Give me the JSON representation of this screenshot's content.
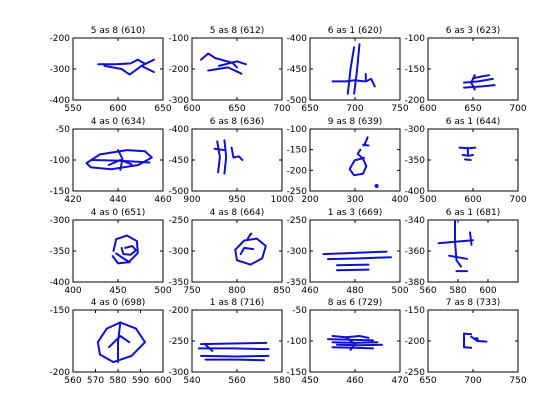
{
  "colors": {
    "stroke": "#1010d0",
    "axes": "#000000",
    "background": "#ffffff"
  },
  "chart_data": [
    {
      "type": "line",
      "title": "5 as 8 (610)",
      "xlim": [
        550,
        650
      ],
      "ylim": [
        -400,
        -200
      ],
      "xticks": [
        550,
        600,
        650
      ],
      "yticks": [
        -400,
        -300,
        -200
      ],
      "strokes": [
        [
          [
            578,
            -285
          ],
          [
            598,
            -285
          ],
          [
            614,
            -282
          ],
          [
            622,
            -270
          ],
          [
            630,
            -283
          ]
        ],
        [
          [
            585,
            -290
          ],
          [
            604,
            -300
          ],
          [
            613,
            -318
          ],
          [
            626,
            -290
          ],
          [
            640,
            -270
          ]
        ],
        [
          [
            626,
            -290
          ],
          [
            640,
            -310
          ]
        ]
      ],
      "dots": []
    },
    {
      "type": "line",
      "title": "5 as 8 (612)",
      "xlim": [
        600,
        700
      ],
      "ylim": [
        -300,
        -100
      ],
      "xticks": [
        600,
        650,
        700
      ],
      "yticks": [
        -300,
        -200,
        -100
      ],
      "strokes": [
        [
          [
            610,
            -170
          ],
          [
            618,
            -150
          ],
          [
            626,
            -165
          ],
          [
            645,
            -180
          ],
          [
            650,
            -195
          ]
        ],
        [
          [
            618,
            -205
          ],
          [
            640,
            -195
          ],
          [
            655,
            -215
          ]
        ],
        [
          [
            630,
            -190
          ],
          [
            650,
            -175
          ],
          [
            660,
            -185
          ]
        ]
      ],
      "dots": []
    },
    {
      "type": "line",
      "title": "6 as 1 (620)",
      "xlim": [
        650,
        750
      ],
      "ylim": [
        -500,
        -400
      ],
      "xticks": [
        650,
        700,
        750
      ],
      "yticks": [
        -500,
        -450,
        -400
      ],
      "strokes": [
        [
          [
            692,
            -490
          ],
          [
            695,
            -450
          ],
          [
            699,
            -415
          ]
        ],
        [
          [
            699,
            -490
          ],
          [
            702,
            -455
          ],
          [
            705,
            -410
          ]
        ],
        [
          [
            675,
            -470
          ],
          [
            690,
            -470
          ],
          [
            700,
            -468
          ],
          [
            710,
            -470
          ]
        ],
        [
          [
            712,
            -458
          ],
          [
            712,
            -470
          ],
          [
            718,
            -466
          ],
          [
            722,
            -478
          ]
        ]
      ],
      "dots": []
    },
    {
      "type": "line",
      "title": "6 as 3 (623)",
      "xlim": [
        600,
        700
      ],
      "ylim": [
        -200,
        -100
      ],
      "xticks": [
        600,
        650,
        700
      ],
      "yticks": [
        -200,
        -150,
        -100
      ],
      "strokes": [
        [
          [
            650,
            -165
          ],
          [
            660,
            -162
          ],
          [
            668,
            -160
          ]
        ],
        [
          [
            640,
            -172
          ],
          [
            656,
            -170
          ],
          [
            672,
            -166
          ]
        ],
        [
          [
            640,
            -180
          ],
          [
            660,
            -178
          ],
          [
            674,
            -176
          ]
        ],
        [
          [
            652,
            -160
          ],
          [
            648,
            -172
          ],
          [
            652,
            -183
          ]
        ]
      ],
      "dots": []
    },
    {
      "type": "line",
      "title": "4 as 0 (634)",
      "xlim": [
        420,
        460
      ],
      "ylim": [
        -150,
        -50
      ],
      "xticks": [
        420,
        440,
        460
      ],
      "yticks": [
        -150,
        -100,
        -50
      ],
      "strokes": [
        [
          [
            426,
            -105
          ],
          [
            432,
            -91
          ],
          [
            444,
            -84
          ],
          [
            452,
            -86
          ],
          [
            455,
            -96
          ],
          [
            449,
            -108
          ],
          [
            437,
            -115
          ],
          [
            428,
            -112
          ],
          [
            426,
            -105
          ]
        ],
        [
          [
            428,
            -100
          ],
          [
            440,
            -101
          ],
          [
            454,
            -104
          ]
        ],
        [
          [
            440,
            -84
          ],
          [
            442,
            -98
          ],
          [
            441,
            -116
          ]
        ],
        [
          [
            436,
            -108
          ],
          [
            441,
            -100
          ],
          [
            446,
            -107
          ]
        ]
      ],
      "dots": []
    },
    {
      "type": "line",
      "title": "6 as 8 (636)",
      "xlim": [
        900,
        1000
      ],
      "ylim": [
        -500,
        -400
      ],
      "xticks": [
        900,
        950,
        1000
      ],
      "yticks": [
        -500,
        -450,
        -400
      ],
      "strokes": [
        [
          [
            928,
            -420
          ],
          [
            931,
            -445
          ],
          [
            929,
            -470
          ]
        ],
        [
          [
            936,
            -418
          ],
          [
            938,
            -445
          ],
          [
            936,
            -472
          ]
        ],
        [
          [
            925,
            -432
          ],
          [
            936,
            -434
          ]
        ],
        [
          [
            944,
            -430
          ],
          [
            946,
            -446
          ],
          [
            952,
            -444
          ],
          [
            956,
            -450
          ]
        ]
      ],
      "dots": []
    },
    {
      "type": "line",
      "title": "9 as 8 (639)",
      "xlim": [
        200,
        400
      ],
      "ylim": [
        -250,
        -100
      ],
      "xticks": [
        200,
        300,
        400
      ],
      "yticks": [
        -250,
        -200,
        -150,
        -100
      ],
      "strokes": [
        [
          [
            320,
            -170
          ],
          [
            299,
            -176
          ],
          [
            288,
            -197
          ],
          [
            298,
            -212
          ],
          [
            318,
            -208
          ],
          [
            325,
            -190
          ],
          [
            318,
            -172
          ],
          [
            306,
            -160
          ],
          [
            312,
            -150
          ]
        ],
        [
          [
            320,
            -140
          ],
          [
            325,
            -128
          ],
          [
            328,
            -120
          ]
        ],
        [
          [
            318,
            -138
          ],
          [
            330,
            -140
          ]
        ]
      ],
      "dots": [
        [
          348,
          -238
        ]
      ]
    },
    {
      "type": "line",
      "title": "6 as 1 (644)",
      "xlim": [
        500,
        700
      ],
      "ylim": [
        -400,
        -300
      ],
      "xticks": [
        500,
        600,
        700
      ],
      "yticks": [
        -400,
        -350,
        -300
      ],
      "strokes": [
        [
          [
            570,
            -330
          ],
          [
            590,
            -331
          ],
          [
            605,
            -330
          ]
        ],
        [
          [
            588,
            -330
          ],
          [
            589,
            -342
          ]
        ],
        [
          [
            577,
            -342
          ],
          [
            590,
            -343
          ],
          [
            600,
            -342
          ]
        ],
        [
          [
            582,
            -349
          ],
          [
            595,
            -350
          ]
        ]
      ],
      "dots": []
    },
    {
      "type": "line",
      "title": "4 as 0 (651)",
      "xlim": [
        400,
        500
      ],
      "ylim": [
        -400,
        -300
      ],
      "xticks": [
        400,
        450,
        500
      ],
      "yticks": [
        -400,
        -350,
        -300
      ],
      "strokes": [
        [
          [
            445,
            -350
          ],
          [
            448,
            -331
          ],
          [
            460,
            -325
          ],
          [
            471,
            -334
          ],
          [
            472,
            -353
          ],
          [
            462,
            -368
          ],
          [
            450,
            -370
          ],
          [
            444,
            -358
          ]
        ],
        [
          [
            454,
            -345
          ],
          [
            456,
            -355
          ],
          [
            464,
            -356
          ],
          [
            470,
            -349
          ],
          [
            466,
            -342
          ],
          [
            458,
            -345
          ]
        ],
        [
          [
            448,
            -354
          ],
          [
            456,
            -362
          ],
          [
            463,
            -368
          ]
        ]
      ],
      "dots": []
    },
    {
      "type": "line",
      "title": "4 as 8 (664)",
      "xlim": [
        750,
        850
      ],
      "ylim": [
        -350,
        -250
      ],
      "xticks": [
        750,
        800,
        850
      ],
      "yticks": [
        -350,
        -300,
        -250
      ],
      "strokes": [
        [
          [
            822,
            -280
          ],
          [
            808,
            -283
          ],
          [
            798,
            -298
          ],
          [
            800,
            -315
          ],
          [
            815,
            -322
          ],
          [
            828,
            -312
          ],
          [
            832,
            -292
          ],
          [
            822,
            -280
          ]
        ],
        [
          [
            804,
            -305
          ],
          [
            808,
            -295
          ],
          [
            818,
            -297
          ]
        ],
        [
          [
            812,
            -280
          ],
          [
            814,
            -275
          ],
          [
            816,
            -272
          ]
        ]
      ],
      "dots": []
    },
    {
      "type": "line",
      "title": "1 as 3 (669)",
      "xlim": [
        460,
        500
      ],
      "ylim": [
        -350,
        -250
      ],
      "xticks": [
        460,
        480,
        500
      ],
      "yticks": [
        -350,
        -300,
        -250
      ],
      "strokes": [
        [
          [
            466,
            -305
          ],
          [
            480,
            -303
          ],
          [
            494,
            -301
          ]
        ],
        [
          [
            468,
            -313
          ],
          [
            482,
            -312
          ],
          [
            496,
            -310
          ]
        ],
        [
          [
            472,
            -323
          ],
          [
            486,
            -322
          ]
        ],
        [
          [
            472,
            -331
          ],
          [
            486,
            -330
          ]
        ]
      ],
      "dots": []
    },
    {
      "type": "line",
      "title": "6 as 1 (681)",
      "xlim": [
        560,
        620
      ],
      "ylim": [
        -380,
        -340
      ],
      "xticks": [
        560,
        580,
        600
      ],
      "yticks": [
        -380,
        -360,
        -340
      ],
      "strokes": [
        [
          [
            567,
            -355
          ],
          [
            578,
            -354
          ],
          [
            590,
            -353
          ]
        ],
        [
          [
            578,
            -340
          ],
          [
            578,
            -354
          ],
          [
            579,
            -366
          ],
          [
            582,
            -370
          ]
        ],
        [
          [
            588,
            -348
          ],
          [
            589,
            -356
          ]
        ],
        [
          [
            574,
            -363
          ],
          [
            586,
            -365
          ]
        ],
        [
          [
            579,
            -373
          ],
          [
            586,
            -373
          ]
        ]
      ],
      "dots": []
    },
    {
      "type": "line",
      "title": "4 as 0 (698)",
      "xlim": [
        560,
        600
      ],
      "ylim": [
        -200,
        -150
      ],
      "xticks": [
        560,
        570,
        580,
        590,
        600
      ],
      "yticks": [
        -200,
        -150
      ],
      "strokes": [
        [
          [
            571,
            -176
          ],
          [
            575,
            -165
          ],
          [
            581,
            -160
          ],
          [
            588,
            -165
          ],
          [
            592,
            -176
          ],
          [
            586,
            -187
          ],
          [
            578,
            -192
          ],
          [
            572,
            -186
          ],
          [
            571,
            -176
          ]
        ],
        [
          [
            581,
            -160
          ],
          [
            580,
            -176
          ],
          [
            580,
            -192
          ]
        ],
        [
          [
            576,
            -180
          ],
          [
            581,
            -171
          ],
          [
            585,
            -176
          ]
        ]
      ],
      "dots": []
    },
    {
      "type": "line",
      "title": "1 as 8 (716)",
      "xlim": [
        540,
        580
      ],
      "ylim": [
        -300,
        -200
      ],
      "xticks": [
        540,
        560,
        580
      ],
      "yticks": [
        -300,
        -250,
        -200
      ],
      "strokes": [
        [
          [
            544,
            -255
          ],
          [
            558,
            -254
          ],
          [
            573,
            -253
          ]
        ],
        [
          [
            543,
            -262
          ],
          [
            558,
            -262
          ],
          [
            574,
            -263
          ]
        ],
        [
          [
            544,
            -274
          ],
          [
            560,
            -275
          ],
          [
            574,
            -274
          ]
        ],
        [
          [
            546,
            -280
          ],
          [
            560,
            -280
          ],
          [
            572,
            -281
          ]
        ],
        [
          [
            546,
            -256
          ],
          [
            549,
            -266
          ]
        ]
      ],
      "dots": []
    },
    {
      "type": "line",
      "title": "8 as 6 (729)",
      "xlim": [
        450,
        470
      ],
      "ylim": [
        -150,
        -50
      ],
      "xticks": [
        450,
        460,
        470
      ],
      "yticks": [
        -150,
        -100,
        -50
      ],
      "strokes": [
        [
          [
            455,
            -92
          ],
          [
            458,
            -94
          ],
          [
            461,
            -92
          ],
          [
            463,
            -95
          ]
        ],
        [
          [
            454,
            -97
          ],
          [
            459,
            -98
          ],
          [
            464,
            -99
          ]
        ],
        [
          [
            455,
            -102
          ],
          [
            460,
            -103
          ],
          [
            465,
            -102
          ]
        ],
        [
          [
            456,
            -106
          ],
          [
            461,
            -107
          ],
          [
            466,
            -106
          ]
        ],
        [
          [
            455,
            -110
          ],
          [
            460,
            -111
          ],
          [
            464,
            -112
          ]
        ],
        [
          [
            458,
            -94
          ],
          [
            460,
            -105
          ],
          [
            459,
            -114
          ]
        ]
      ],
      "dots": []
    },
    {
      "type": "line",
      "title": "7 as 8 (733)",
      "xlim": [
        650,
        750
      ],
      "ylim": [
        -250,
        -150
      ],
      "xticks": [
        650,
        700,
        750
      ],
      "yticks": [
        -250,
        -200,
        -150
      ],
      "strokes": [
        [
          [
            690,
            -188
          ],
          [
            698,
            -189
          ]
        ],
        [
          [
            690,
            -188
          ],
          [
            690,
            -210
          ],
          [
            698,
            -211
          ]
        ],
        [
          [
            698,
            -193
          ],
          [
            705,
            -200
          ],
          [
            715,
            -201
          ]
        ]
      ],
      "dots": [
        [
          704,
          -197
        ]
      ]
    }
  ]
}
